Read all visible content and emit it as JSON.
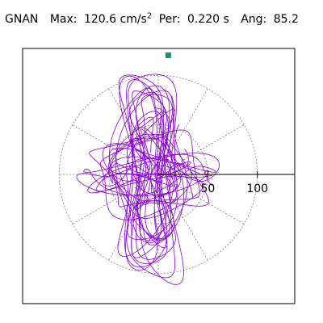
{
  "header": {
    "station": "GNAN",
    "max_label": "Max:",
    "max_value": "120.6",
    "max_unit": "cm/s",
    "max_unit_exp": "2",
    "per_label": "Per:",
    "per_value": "0.220 s",
    "ang_label": "Ang:",
    "ang_value": "85.2"
  },
  "chart_data": {
    "type": "scatter",
    "title": "",
    "xlabel": "",
    "ylabel": "",
    "rlim": [
      0,
      120.6
    ],
    "radial_ticks": [
      50,
      100
    ],
    "radial_tick_labels": [
      "50",
      "100"
    ],
    "grid": true,
    "angular_grid_spacing_deg": 30,
    "max_point": {
      "angle_deg": 85.2,
      "r": 120.6
    },
    "orbit_series": [
      {
        "amp_x": 28,
        "amp_y": 110,
        "phase": 0.3,
        "turns": 1
      },
      {
        "amp_x": 18,
        "amp_y": 95,
        "phase": 1.1,
        "turns": 1
      },
      {
        "amp_x": 55,
        "amp_y": 40,
        "phase": 0.7,
        "turns": 1
      },
      {
        "amp_x": 72,
        "amp_y": 14,
        "phase": 2.0,
        "turns": 1
      },
      {
        "amp_x": 35,
        "amp_y": 80,
        "phase": 1.6,
        "turns": 1
      }
    ],
    "colors": {
      "trace": "#8b00d6",
      "marker": "#0f9a6a",
      "grid": "#808080",
      "axis": "#000000"
    }
  }
}
